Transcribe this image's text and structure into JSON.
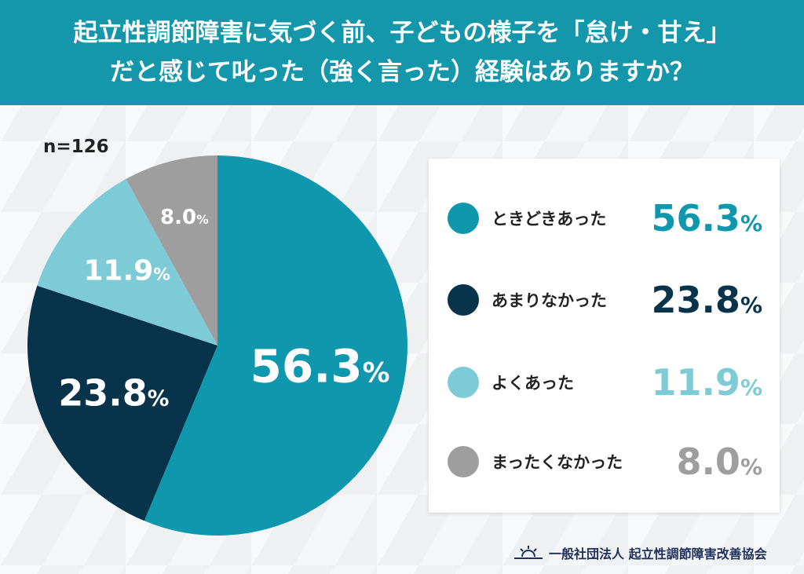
{
  "title_lines": [
    "起立性調節障害に気づく前、子どもの様子を「怠け・甘え」",
    "だと感じて叱った（強く言った）経験はありますか？"
  ],
  "sample_size": "n=126",
  "footer_org": "一般社団法人 起立性調節障害改善協会",
  "chart_data": {
    "type": "pie",
    "title": "起立性調節障害に気づく前、子どもの様子を「怠け・甘え」だと感じて叱った（強く言った）経験はありますか？",
    "categories": [
      "ときどきあった",
      "あまりなかった",
      "よくあった",
      "まったくなかった"
    ],
    "values": [
      56.3,
      23.8,
      11.9,
      8.0
    ],
    "labels": [
      "56.3",
      "23.8",
      "11.9",
      "8.0"
    ],
    "unit": "%",
    "colors": [
      "#0e97ad",
      "#07344a",
      "#7ccbd6",
      "#9e9e9e"
    ],
    "start": "top",
    "direction": "clockwise",
    "legend": "right"
  }
}
